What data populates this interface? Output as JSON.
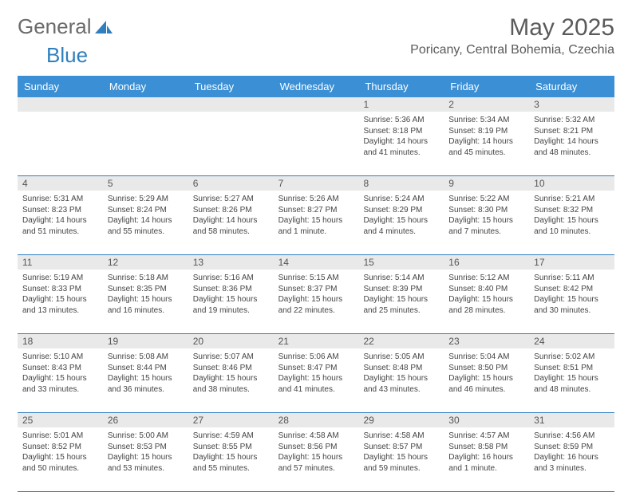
{
  "logo": {
    "text1": "General",
    "text2": "Blue"
  },
  "title": "May 2025",
  "location": "Poricany, Central Bohemia, Czechia",
  "day_headers": [
    "Sunday",
    "Monday",
    "Tuesday",
    "Wednesday",
    "Thursday",
    "Friday",
    "Saturday"
  ],
  "colors": {
    "header_bg": "#3b8fd4",
    "header_fg": "#ffffff",
    "daynum_bg": "#e9e9e9",
    "rule": "#2f7fbf",
    "text": "#444444",
    "title": "#5a5a5a"
  },
  "weeks": [
    [
      {
        "n": "",
        "sr": "",
        "ss": "",
        "dl": ""
      },
      {
        "n": "",
        "sr": "",
        "ss": "",
        "dl": ""
      },
      {
        "n": "",
        "sr": "",
        "ss": "",
        "dl": ""
      },
      {
        "n": "",
        "sr": "",
        "ss": "",
        "dl": ""
      },
      {
        "n": "1",
        "sr": "Sunrise: 5:36 AM",
        "ss": "Sunset: 8:18 PM",
        "dl": "Daylight: 14 hours and 41 minutes."
      },
      {
        "n": "2",
        "sr": "Sunrise: 5:34 AM",
        "ss": "Sunset: 8:19 PM",
        "dl": "Daylight: 14 hours and 45 minutes."
      },
      {
        "n": "3",
        "sr": "Sunrise: 5:32 AM",
        "ss": "Sunset: 8:21 PM",
        "dl": "Daylight: 14 hours and 48 minutes."
      }
    ],
    [
      {
        "n": "4",
        "sr": "Sunrise: 5:31 AM",
        "ss": "Sunset: 8:23 PM",
        "dl": "Daylight: 14 hours and 51 minutes."
      },
      {
        "n": "5",
        "sr": "Sunrise: 5:29 AM",
        "ss": "Sunset: 8:24 PM",
        "dl": "Daylight: 14 hours and 55 minutes."
      },
      {
        "n": "6",
        "sr": "Sunrise: 5:27 AM",
        "ss": "Sunset: 8:26 PM",
        "dl": "Daylight: 14 hours and 58 minutes."
      },
      {
        "n": "7",
        "sr": "Sunrise: 5:26 AM",
        "ss": "Sunset: 8:27 PM",
        "dl": "Daylight: 15 hours and 1 minute."
      },
      {
        "n": "8",
        "sr": "Sunrise: 5:24 AM",
        "ss": "Sunset: 8:29 PM",
        "dl": "Daylight: 15 hours and 4 minutes."
      },
      {
        "n": "9",
        "sr": "Sunrise: 5:22 AM",
        "ss": "Sunset: 8:30 PM",
        "dl": "Daylight: 15 hours and 7 minutes."
      },
      {
        "n": "10",
        "sr": "Sunrise: 5:21 AM",
        "ss": "Sunset: 8:32 PM",
        "dl": "Daylight: 15 hours and 10 minutes."
      }
    ],
    [
      {
        "n": "11",
        "sr": "Sunrise: 5:19 AM",
        "ss": "Sunset: 8:33 PM",
        "dl": "Daylight: 15 hours and 13 minutes."
      },
      {
        "n": "12",
        "sr": "Sunrise: 5:18 AM",
        "ss": "Sunset: 8:35 PM",
        "dl": "Daylight: 15 hours and 16 minutes."
      },
      {
        "n": "13",
        "sr": "Sunrise: 5:16 AM",
        "ss": "Sunset: 8:36 PM",
        "dl": "Daylight: 15 hours and 19 minutes."
      },
      {
        "n": "14",
        "sr": "Sunrise: 5:15 AM",
        "ss": "Sunset: 8:37 PM",
        "dl": "Daylight: 15 hours and 22 minutes."
      },
      {
        "n": "15",
        "sr": "Sunrise: 5:14 AM",
        "ss": "Sunset: 8:39 PM",
        "dl": "Daylight: 15 hours and 25 minutes."
      },
      {
        "n": "16",
        "sr": "Sunrise: 5:12 AM",
        "ss": "Sunset: 8:40 PM",
        "dl": "Daylight: 15 hours and 28 minutes."
      },
      {
        "n": "17",
        "sr": "Sunrise: 5:11 AM",
        "ss": "Sunset: 8:42 PM",
        "dl": "Daylight: 15 hours and 30 minutes."
      }
    ],
    [
      {
        "n": "18",
        "sr": "Sunrise: 5:10 AM",
        "ss": "Sunset: 8:43 PM",
        "dl": "Daylight: 15 hours and 33 minutes."
      },
      {
        "n": "19",
        "sr": "Sunrise: 5:08 AM",
        "ss": "Sunset: 8:44 PM",
        "dl": "Daylight: 15 hours and 36 minutes."
      },
      {
        "n": "20",
        "sr": "Sunrise: 5:07 AM",
        "ss": "Sunset: 8:46 PM",
        "dl": "Daylight: 15 hours and 38 minutes."
      },
      {
        "n": "21",
        "sr": "Sunrise: 5:06 AM",
        "ss": "Sunset: 8:47 PM",
        "dl": "Daylight: 15 hours and 41 minutes."
      },
      {
        "n": "22",
        "sr": "Sunrise: 5:05 AM",
        "ss": "Sunset: 8:48 PM",
        "dl": "Daylight: 15 hours and 43 minutes."
      },
      {
        "n": "23",
        "sr": "Sunrise: 5:04 AM",
        "ss": "Sunset: 8:50 PM",
        "dl": "Daylight: 15 hours and 46 minutes."
      },
      {
        "n": "24",
        "sr": "Sunrise: 5:02 AM",
        "ss": "Sunset: 8:51 PM",
        "dl": "Daylight: 15 hours and 48 minutes."
      }
    ],
    [
      {
        "n": "25",
        "sr": "Sunrise: 5:01 AM",
        "ss": "Sunset: 8:52 PM",
        "dl": "Daylight: 15 hours and 50 minutes."
      },
      {
        "n": "26",
        "sr": "Sunrise: 5:00 AM",
        "ss": "Sunset: 8:53 PM",
        "dl": "Daylight: 15 hours and 53 minutes."
      },
      {
        "n": "27",
        "sr": "Sunrise: 4:59 AM",
        "ss": "Sunset: 8:55 PM",
        "dl": "Daylight: 15 hours and 55 minutes."
      },
      {
        "n": "28",
        "sr": "Sunrise: 4:58 AM",
        "ss": "Sunset: 8:56 PM",
        "dl": "Daylight: 15 hours and 57 minutes."
      },
      {
        "n": "29",
        "sr": "Sunrise: 4:58 AM",
        "ss": "Sunset: 8:57 PM",
        "dl": "Daylight: 15 hours and 59 minutes."
      },
      {
        "n": "30",
        "sr": "Sunrise: 4:57 AM",
        "ss": "Sunset: 8:58 PM",
        "dl": "Daylight: 16 hours and 1 minute."
      },
      {
        "n": "31",
        "sr": "Sunrise: 4:56 AM",
        "ss": "Sunset: 8:59 PM",
        "dl": "Daylight: 16 hours and 3 minutes."
      }
    ]
  ]
}
